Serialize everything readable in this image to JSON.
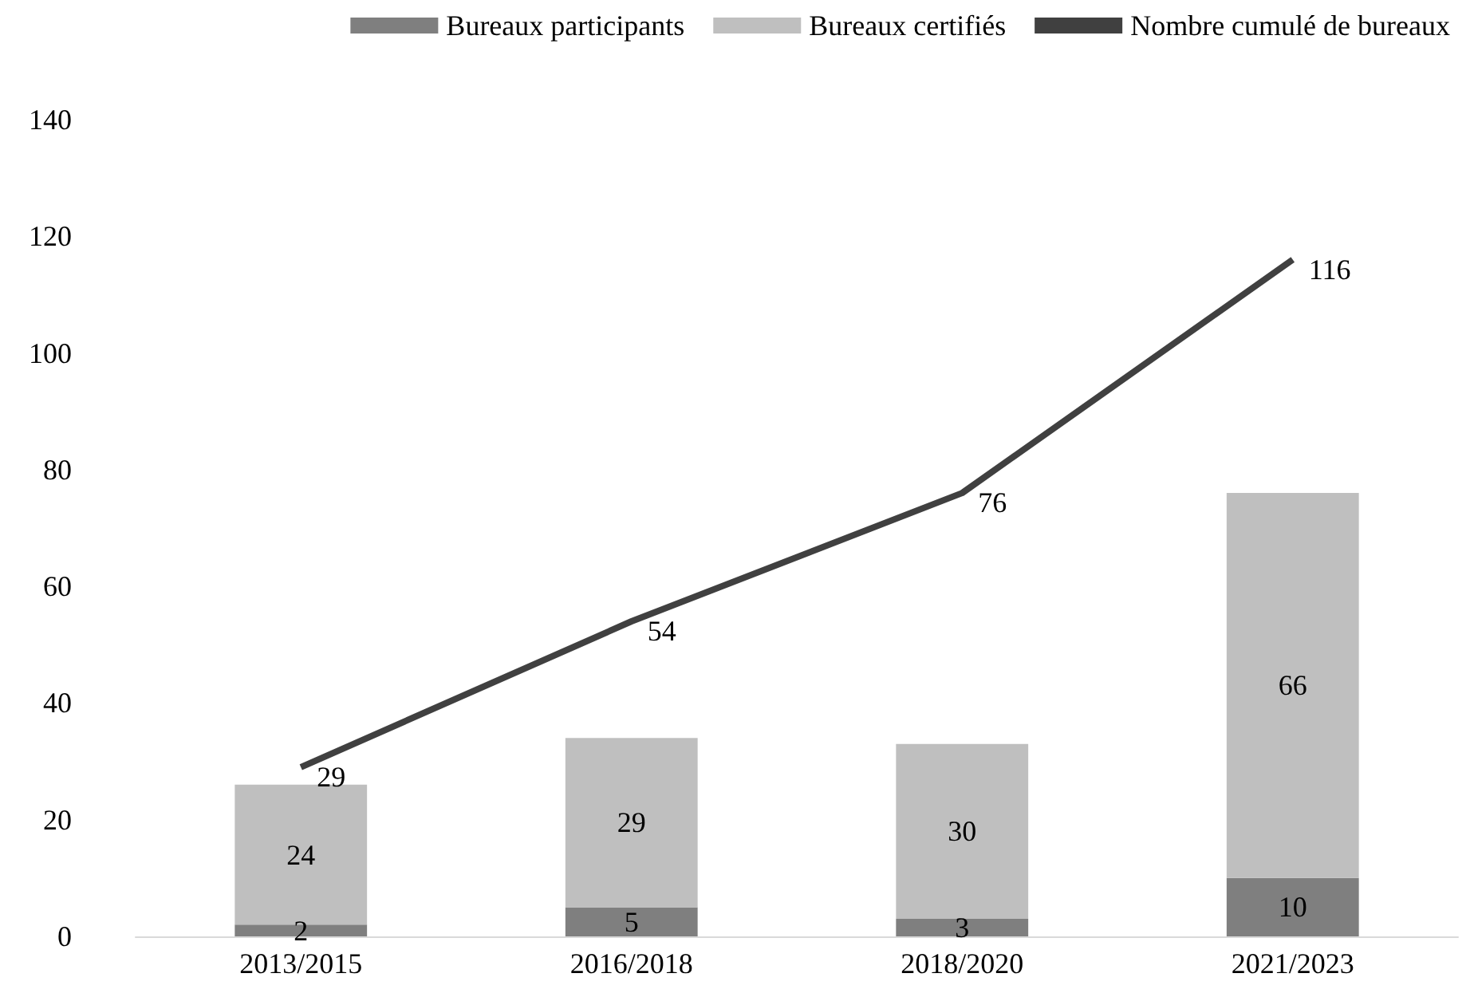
{
  "chart_data": {
    "type": "bar",
    "stacked": true,
    "categories": [
      "2013/2015",
      "2016/2018",
      "2018/2020",
      "2021/2023"
    ],
    "series": [
      {
        "name": "Bureaux participants",
        "color": "#7f7f7f",
        "values": [
          2,
          5,
          3,
          10
        ]
      },
      {
        "name": "Bureaux certifiés",
        "color": "#bfbfbf",
        "values": [
          24,
          29,
          30,
          66
        ]
      },
      {
        "name": "Nombre cumulé de bureaux",
        "type": "line",
        "color": "#404040",
        "values": [
          29,
          54,
          76,
          116
        ]
      }
    ],
    "ylim": [
      0,
      140
    ],
    "yticks": [
      0,
      20,
      40,
      60,
      80,
      100,
      120,
      140
    ],
    "grid": false,
    "legend": "top",
    "data_labels": true,
    "marker": "none"
  }
}
